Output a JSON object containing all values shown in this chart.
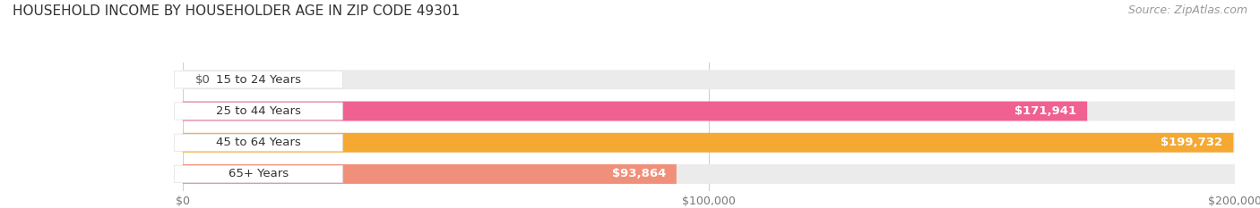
{
  "title": "HOUSEHOLD INCOME BY HOUSEHOLDER AGE IN ZIP CODE 49301",
  "source": "Source: ZipAtlas.com",
  "categories": [
    "15 to 24 Years",
    "25 to 44 Years",
    "45 to 64 Years",
    "65+ Years"
  ],
  "values": [
    0,
    171941,
    199732,
    93864
  ],
  "bar_colors": [
    "#aaaad4",
    "#f06090",
    "#f5a832",
    "#f0907a"
  ],
  "track_color": "#ebebeb",
  "xlim": [
    0,
    200000
  ],
  "xticks": [
    0,
    100000,
    200000
  ],
  "xtick_labels": [
    "$0",
    "$100,000",
    "$200,000"
  ],
  "value_labels": [
    "$0",
    "$171,941",
    "$199,732",
    "$93,864"
  ],
  "value_label_dark": [
    true,
    false,
    false,
    false
  ],
  "background_color": "#ffffff",
  "bar_height": 0.62,
  "label_fontsize": 9.5,
  "title_fontsize": 11,
  "source_fontsize": 9,
  "value_inside_threshold": 30000
}
